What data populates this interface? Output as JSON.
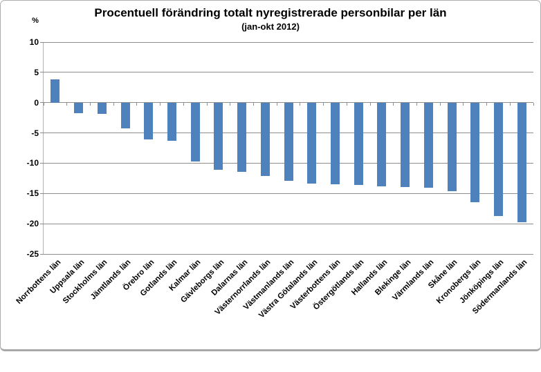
{
  "chart_data": {
    "type": "bar",
    "title": "Procentuell förändring totalt nyregistrerade personbilar per län",
    "subtitle": "(jan-okt 2012)",
    "ylabel": "%",
    "xlabel": "",
    "ylim": [
      -25,
      10
    ],
    "yticks": [
      10,
      5,
      0,
      -5,
      -10,
      -15,
      -20,
      -25
    ],
    "grid": true,
    "legend": false,
    "bar_color": "#4f81bd",
    "gridline_color": "#8c8c8c",
    "axis_line_color": "#b3b3b3",
    "text_color": "#000000",
    "background_color": "#ffffff",
    "categories": [
      "Norrbottens län",
      "Uppsala län",
      "Stockholms län",
      "Jämtlands län",
      "Örebro län",
      "Gotlands län",
      "Kalmar län",
      "Gävleborgs län",
      "Dalarnas län",
      "Västernorrlands län",
      "Västmanlands län",
      "Västra Götalands län",
      "Västerbottens län",
      "Östergötlands län",
      "Hallands län",
      "Blekinge län",
      "Värmlands län",
      "Skåne län",
      "Kronobergs län",
      "Jönköpings län",
      "Södermanlands län"
    ],
    "values": [
      3.9,
      -1.8,
      -1.9,
      -4.3,
      -6.1,
      -6.3,
      -9.7,
      -11.1,
      -11.4,
      -12.1,
      -12.9,
      -13.4,
      -13.5,
      -13.6,
      -13.8,
      -13.9,
      -14.0,
      -14.6,
      -16.5,
      -18.7,
      -19.8
    ]
  }
}
